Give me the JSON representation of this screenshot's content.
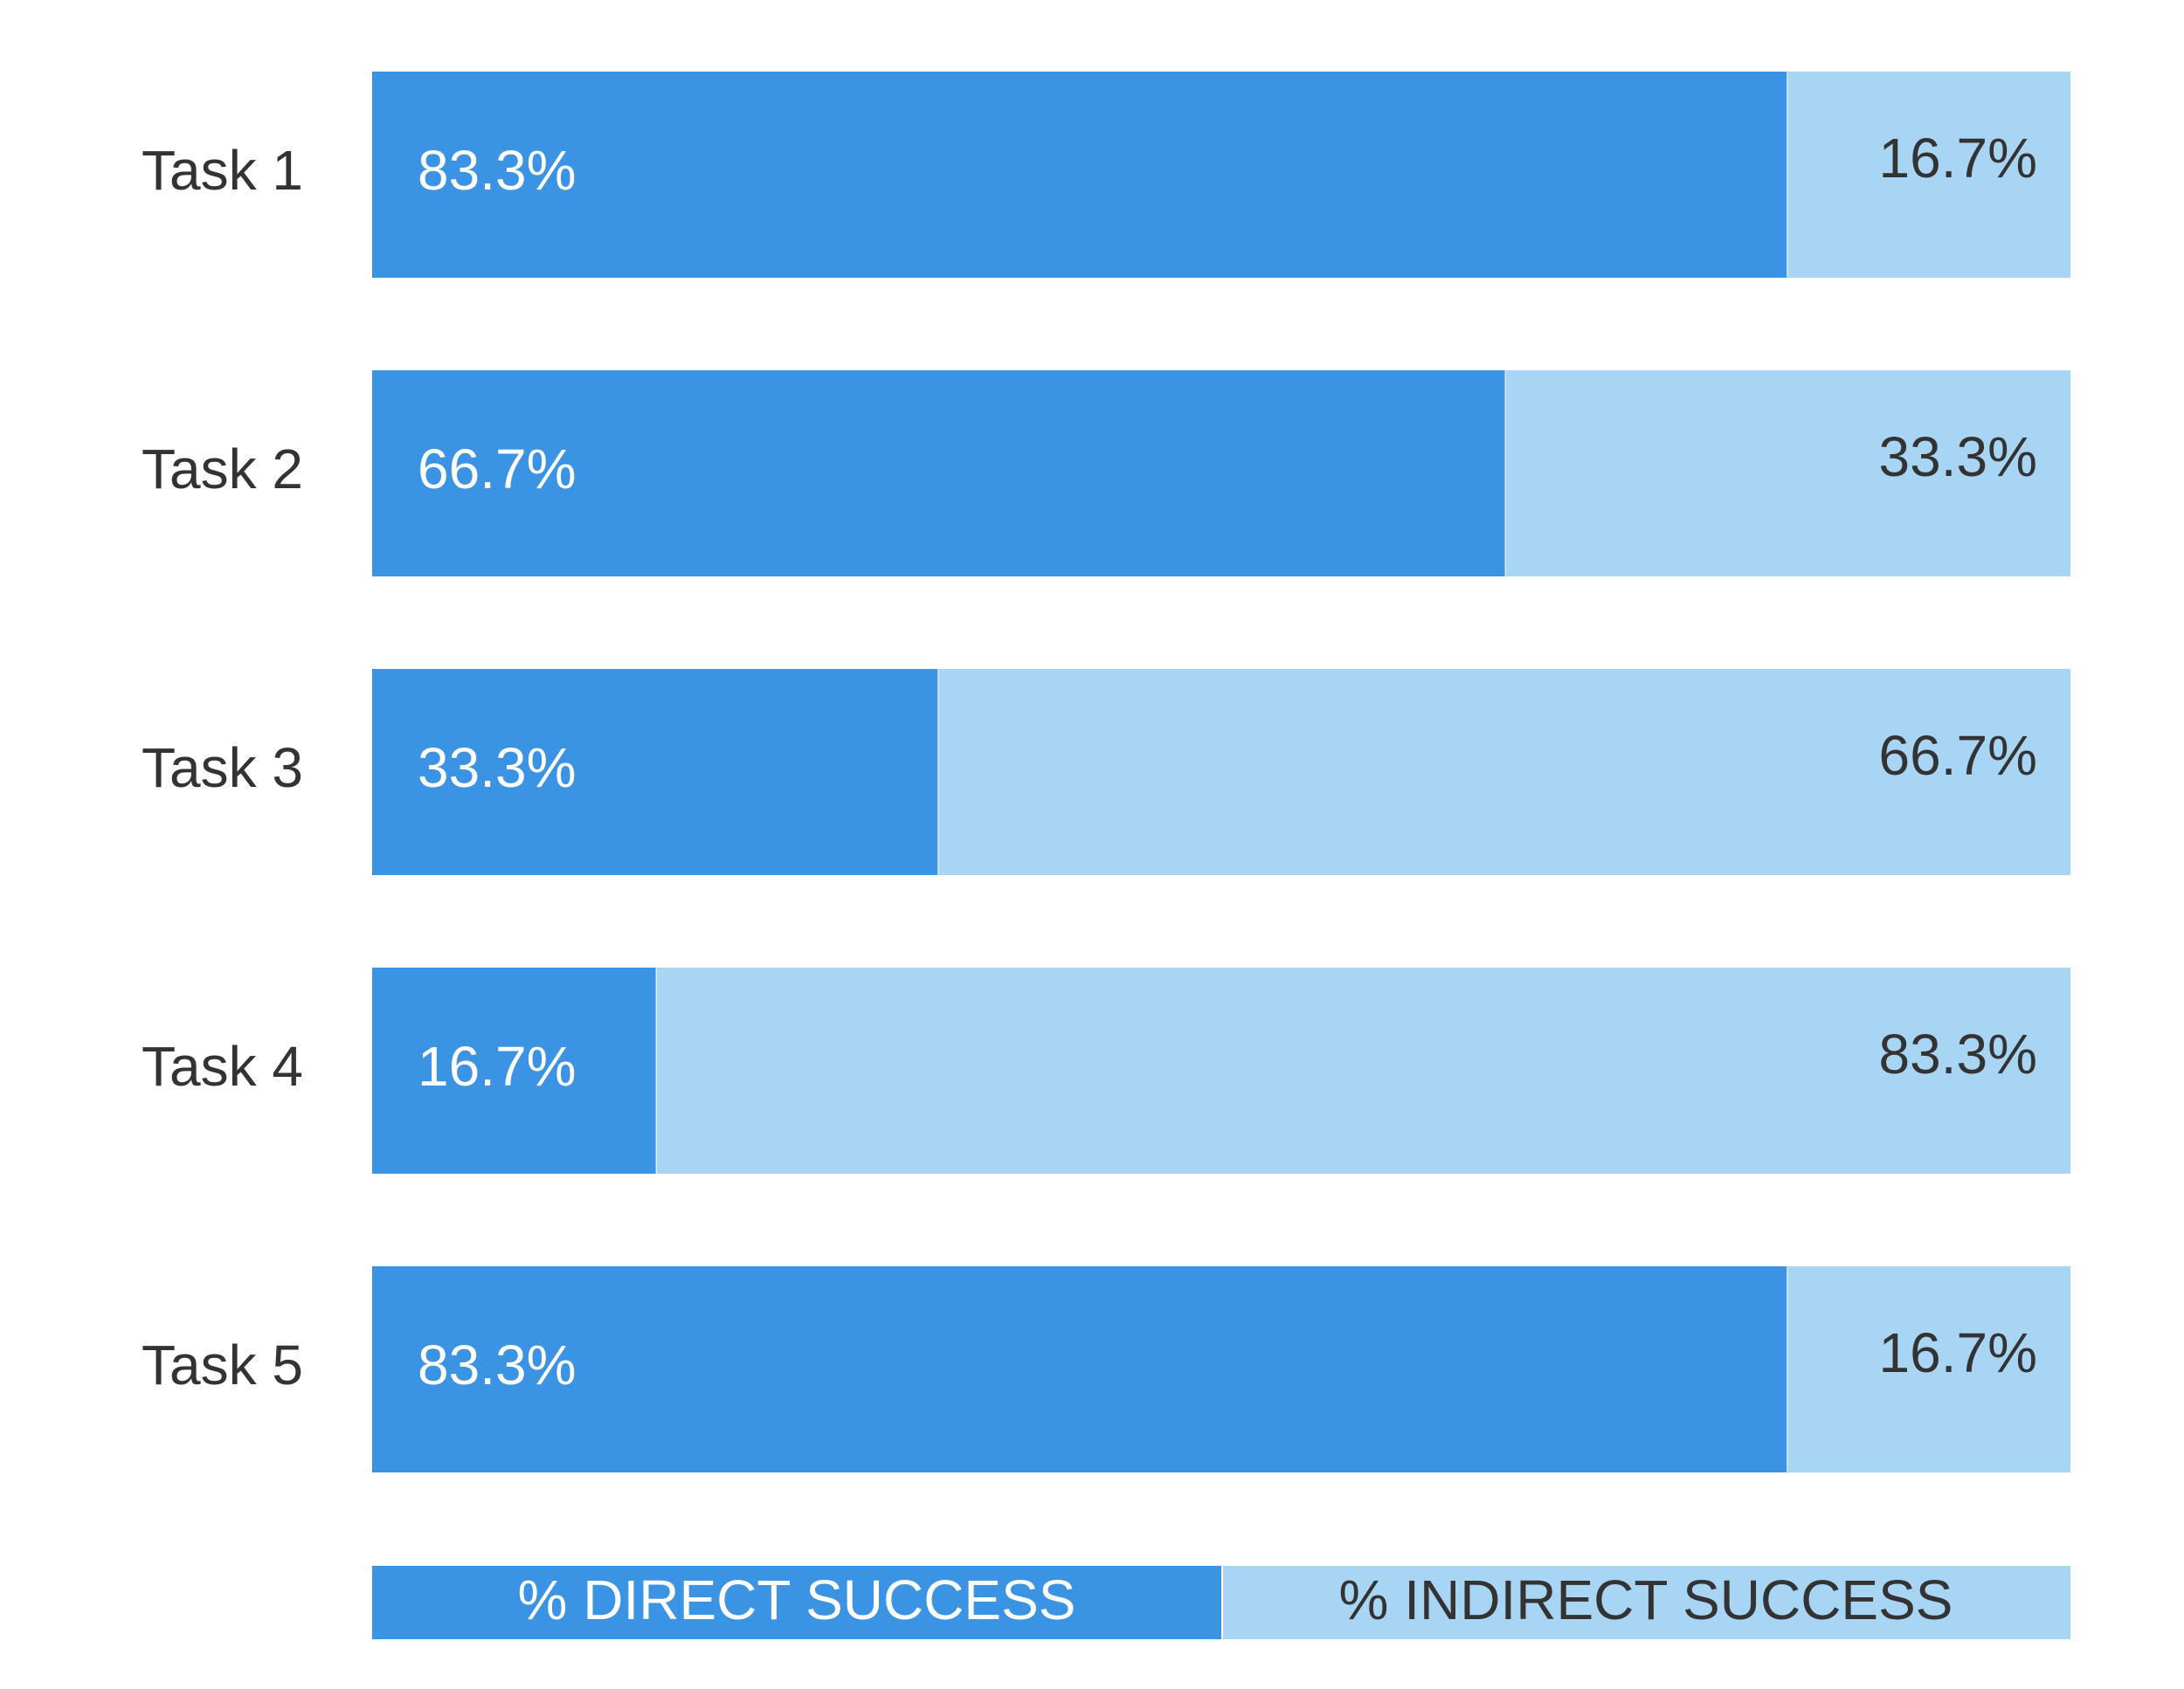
{
  "chart_data": {
    "type": "bar",
    "orientation": "horizontal",
    "stacked": true,
    "categories": [
      "Task 1",
      "Task 2",
      "Task 3",
      "Task 4",
      "Task 5"
    ],
    "series": [
      {
        "name": "% DIRECT SUCCESS",
        "values": [
          83.3,
          66.7,
          33.3,
          16.7,
          83.3
        ],
        "labels": [
          "83.3%",
          "66.7%",
          "33.3%",
          "16.7%",
          "83.3%"
        ],
        "color": "#3b93e4"
      },
      {
        "name": "% INDIRECT SUCCESS",
        "values": [
          16.7,
          33.3,
          66.7,
          83.3,
          16.7
        ],
        "labels": [
          "16.7%",
          "33.3%",
          "66.7%",
          "83.3%",
          "16.7%"
        ],
        "color": "#a8d5f4"
      }
    ],
    "xlim": [
      0,
      100
    ],
    "grid": false,
    "legend": "bottom",
    "title": "",
    "xlabel": "",
    "ylabel": ""
  }
}
